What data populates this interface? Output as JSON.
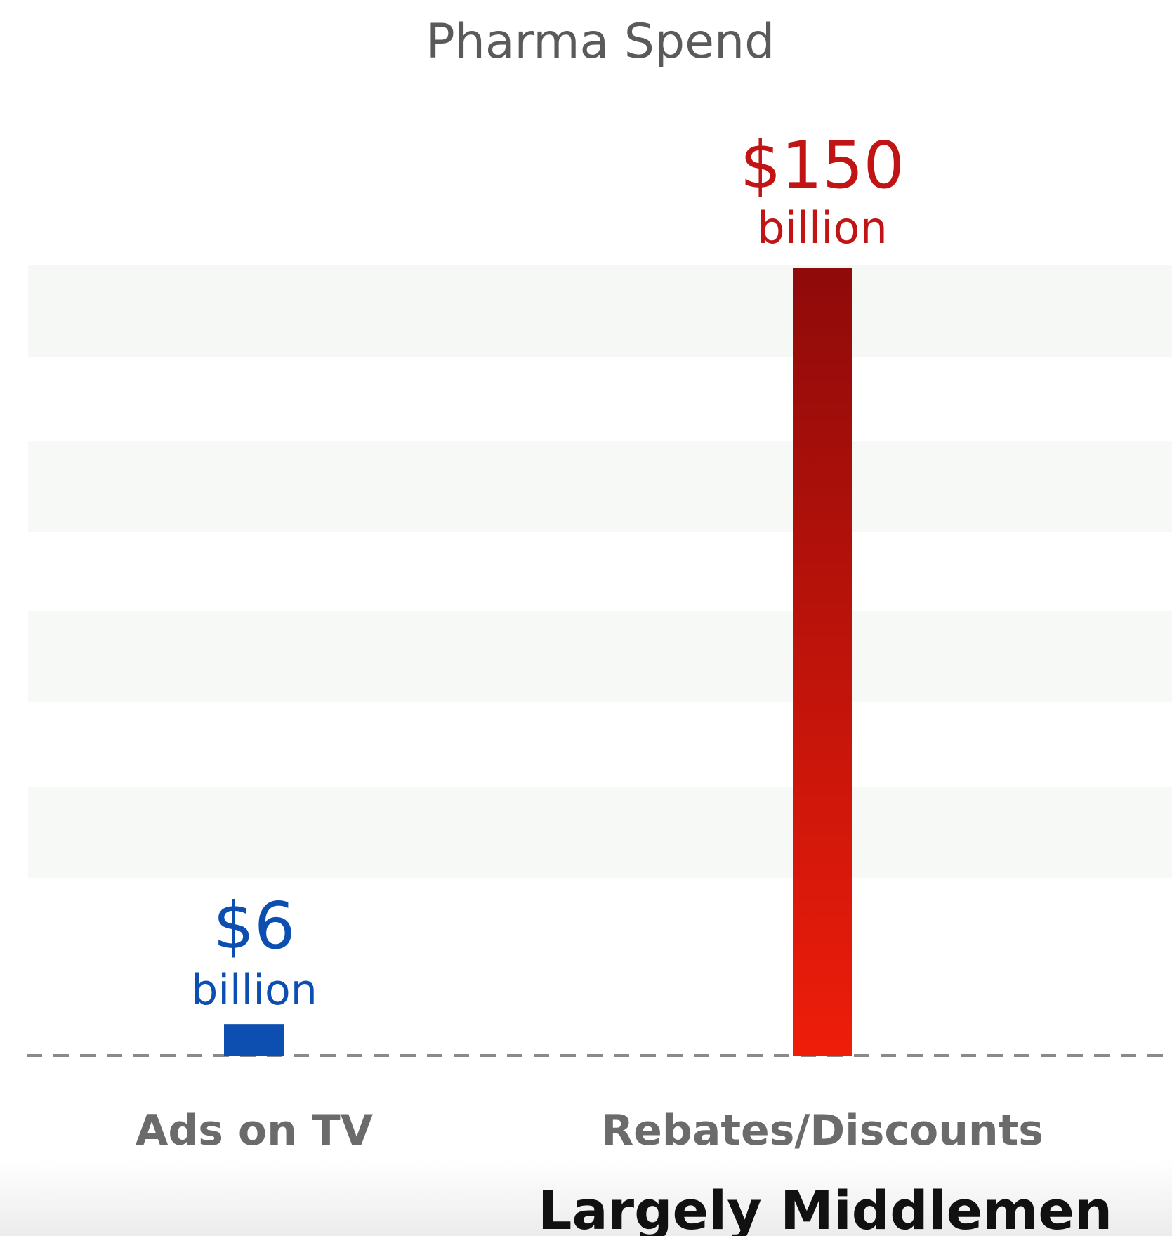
{
  "chart_data": {
    "type": "bar",
    "title": "Pharma Spend",
    "categories": [
      "Ads on TV",
      "Rebates/Discounts"
    ],
    "values": [
      6,
      150
    ],
    "value_labels": [
      {
        "amount": "$6",
        "unit": "billion"
      },
      {
        "amount": "$150",
        "unit": "billion"
      }
    ],
    "ylim": [
      0,
      150
    ],
    "grid": false,
    "baseline": "dashed",
    "bar_colors": [
      "#0d4fb0",
      "#c11414"
    ],
    "bar_gradient": {
      "top": "#8f0a0a",
      "bottom": "#ee1d0a"
    },
    "label_colors": {
      "title": "#5a5a5a",
      "category": "#6b6b6b"
    },
    "annotation": "Largely Middlemen"
  }
}
